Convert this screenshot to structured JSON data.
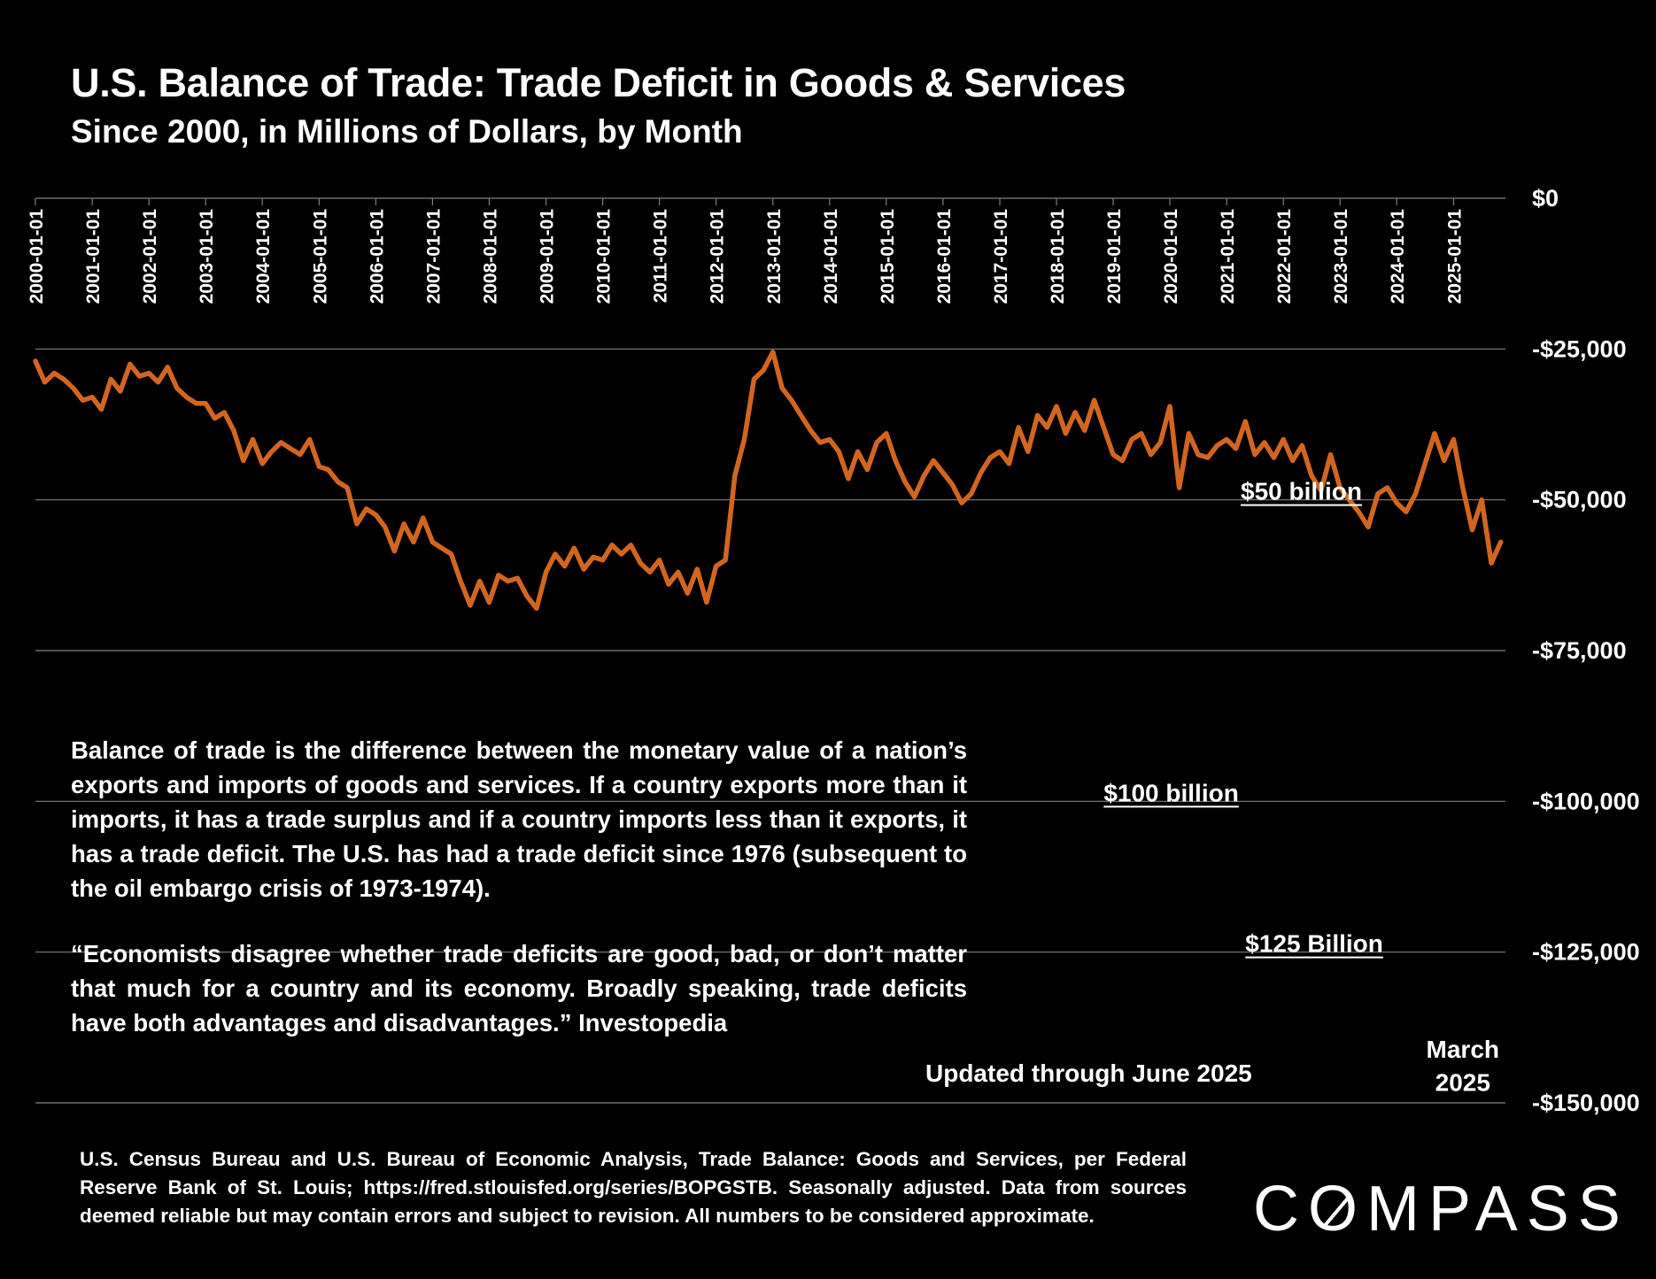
{
  "header": {
    "title": "U.S. Balance of Trade:  Trade Deficit in Goods & Services",
    "subtitle": "Since 2000, in Millions of Dollars, by Month"
  },
  "notes": {
    "paragraph1": "Balance of trade is the difference between the monetary value of a nation’s exports and imports of goods and services. If a country exports more than it imports, it has a trade surplus and if a country imports less than it exports, it has a trade deficit. The U.S. has had a trade deficit since 1976 (subsequent to the oil embargo crisis of 1973-1974).",
    "paragraph2": "“Economists disagree whether trade deficits are good, bad, or don’t matter that much for a country and its economy. Broadly speaking, trade deficits have both advantages and disadvantages.” Investopedia",
    "updated": "Updated through June 2025"
  },
  "footer": {
    "source": "U.S. Census Bureau and U.S. Bureau of Economic Analysis, Trade Balance: Goods and Services, per Federal Reserve Bank of St. Louis; https://fred.stlouisfed.org/series/BOPGSTB. Seasonally adjusted. Data from sources deemed reliable but may contain errors and subject to revision. All numbers to be considered approximate.",
    "logo": "COMPASS"
  },
  "colors": {
    "background": "#000000",
    "line": "#d2661f",
    "grid": "#7f7f7f",
    "text": "#ffffff"
  },
  "chart_data": {
    "type": "line",
    "title": "U.S. Balance of Trade:  Trade Deficit in Goods & Services",
    "subtitle": "Since 2000, in Millions of Dollars, by Month",
    "xlabel": "",
    "ylabel": "",
    "ylim": [
      -150000,
      0
    ],
    "y_ticks": [
      0,
      -25000,
      -50000,
      -75000,
      -100000,
      -125000,
      -150000
    ],
    "y_tick_labels": [
      "$0",
      "-$25,000",
      "-$50,000",
      "-$75,000",
      "-$100,000",
      "-$125,000",
      "-$150,000"
    ],
    "x_tick_labels": [
      "2000-01-01",
      "2001-01-01",
      "2002-01-01",
      "2003-01-01",
      "2004-01-01",
      "2005-01-01",
      "2006-01-01",
      "2007-01-01",
      "2008-01-01",
      "2009-01-01",
      "2010-01-01",
      "2011-01-01",
      "2012-01-01",
      "2013-01-01",
      "2014-01-01",
      "2015-01-01",
      "2016-01-01",
      "2017-01-01",
      "2018-01-01",
      "2019-01-01",
      "2020-01-01",
      "2021-01-01",
      "2022-01-01",
      "2023-01-01",
      "2024-01-01",
      "2025-01-01"
    ],
    "x_axis_position": "top",
    "y_axis_position": "right",
    "grid": true,
    "legend": "none",
    "annotations": [
      {
        "text": "$50 billion",
        "x": "2021-04-01",
        "y": -50000,
        "underline": true
      },
      {
        "text": "$100 billion",
        "x": "2018-11-01",
        "y": -100000,
        "underline": true
      },
      {
        "text": "$125 Billion",
        "x": "2021-05-01",
        "y": -125000,
        "underline": true
      },
      {
        "text": "March",
        "x": "2025-03-01",
        "y": -142500
      },
      {
        "text": "2025",
        "x": "2025-03-01",
        "y": -148000
      }
    ],
    "series": [
      {
        "points": [
          [
            "2000-01-01",
            -27000
          ],
          [
            "2000-03-01",
            -30500
          ],
          [
            "2000-05-01",
            -29000
          ],
          [
            "2000-07-01",
            -30000
          ],
          [
            "2000-09-01",
            -31500
          ],
          [
            "2000-11-01",
            -33500
          ],
          [
            "2001-01-01",
            -33000
          ],
          [
            "2001-03-01",
            -35000
          ],
          [
            "2001-05-01",
            -30000
          ],
          [
            "2001-07-01",
            -32000
          ],
          [
            "2001-09-01",
            -27500
          ],
          [
            "2001-11-01",
            -29500
          ],
          [
            "2002-01-01",
            -29000
          ],
          [
            "2002-03-01",
            -30500
          ],
          [
            "2002-05-01",
            -28000
          ],
          [
            "2002-07-01",
            -31500
          ],
          [
            "2002-09-01",
            -33000
          ],
          [
            "2002-11-01",
            -34000
          ],
          [
            "2003-01-01",
            -34000
          ],
          [
            "2003-03-01",
            -36500
          ],
          [
            "2003-05-01",
            -35500
          ],
          [
            "2003-07-01",
            -38500
          ],
          [
            "2003-09-01",
            -43500
          ],
          [
            "2003-11-01",
            -40000
          ],
          [
            "2004-01-01",
            -44000
          ],
          [
            "2004-03-01",
            -42000
          ],
          [
            "2004-05-01",
            -40500
          ],
          [
            "2004-07-01",
            -41500
          ],
          [
            "2004-09-01",
            -42500
          ],
          [
            "2004-11-01",
            -40000
          ],
          [
            "2005-01-01",
            -44500
          ],
          [
            "2005-03-01",
            -45000
          ],
          [
            "2005-05-01",
            -47000
          ],
          [
            "2005-07-01",
            -48000
          ],
          [
            "2005-09-01",
            -54000
          ],
          [
            "2005-11-01",
            -51500
          ],
          [
            "2006-01-01",
            -52500
          ],
          [
            "2006-03-01",
            -54500
          ],
          [
            "2006-05-01",
            -58500
          ],
          [
            "2006-07-01",
            -54000
          ],
          [
            "2006-09-01",
            -57000
          ],
          [
            "2006-11-01",
            -53000
          ],
          [
            "2007-01-01",
            -57000
          ],
          [
            "2007-03-01",
            -58000
          ],
          [
            "2007-05-01",
            -59000
          ],
          [
            "2007-07-01",
            -63500
          ],
          [
            "2007-09-01",
            -67500
          ],
          [
            "2007-11-01",
            -63500
          ],
          [
            "2008-01-01",
            -67000
          ],
          [
            "2008-03-01",
            -62500
          ],
          [
            "2008-05-01",
            -63500
          ],
          [
            "2008-07-01",
            -63000
          ],
          [
            "2008-09-01",
            -66000
          ],
          [
            "2008-11-01",
            -68000
          ],
          [
            "2009-01-01",
            -62000
          ],
          [
            "2009-03-01",
            -59000
          ],
          [
            "2009-05-01",
            -61000
          ],
          [
            "2009-07-01",
            -58000
          ],
          [
            "2009-09-01",
            -61500
          ],
          [
            "2009-11-01",
            -59500
          ],
          [
            "2010-01-01",
            -60000
          ],
          [
            "2010-03-01",
            -57500
          ],
          [
            "2010-05-01",
            -59000
          ],
          [
            "2010-07-01",
            -57500
          ],
          [
            "2010-09-01",
            -60500
          ],
          [
            "2010-11-01",
            -62000
          ],
          [
            "2011-01-01",
            -60000
          ],
          [
            "2011-03-01",
            -64000
          ],
          [
            "2011-05-01",
            -62000
          ],
          [
            "2011-07-01",
            -65500
          ],
          [
            "2011-09-01",
            -61500
          ],
          [
            "2011-11-01",
            -67000
          ],
          [
            "2012-01-01",
            -61000
          ],
          [
            "2012-03-01",
            -60000
          ],
          [
            "2012-05-01",
            -46000
          ],
          [
            "2012-07-01",
            -40000
          ],
          [
            "2012-09-01",
            -30000
          ],
          [
            "2012-11-01",
            -28500
          ],
          [
            "2013-01-01",
            -25500
          ],
          [
            "2013-03-01",
            -31500
          ],
          [
            "2013-05-01",
            -33500
          ],
          [
            "2013-07-01",
            -36000
          ],
          [
            "2013-09-01",
            -38500
          ],
          [
            "2013-11-01",
            -40500
          ],
          [
            "2014-01-01",
            -40000
          ],
          [
            "2014-03-01",
            -42000
          ],
          [
            "2014-05-01",
            -46500
          ],
          [
            "2014-07-01",
            -42000
          ],
          [
            "2014-09-01",
            -45000
          ],
          [
            "2014-11-01",
            -40500
          ],
          [
            "2015-01-01",
            -39000
          ],
          [
            "2015-03-01",
            -43500
          ],
          [
            "2015-05-01",
            -47000
          ],
          [
            "2015-07-01",
            -49500
          ],
          [
            "2015-09-01",
            -46000
          ],
          [
            "2015-11-01",
            -43500
          ],
          [
            "2016-01-01",
            -45500
          ],
          [
            "2016-03-01",
            -47500
          ],
          [
            "2016-05-01",
            -50500
          ],
          [
            "2016-07-01",
            -49000
          ],
          [
            "2016-09-01",
            -45500
          ],
          [
            "2016-11-01",
            -43000
          ],
          [
            "2017-01-01",
            -42000
          ],
          [
            "2017-03-01",
            -44000
          ],
          [
            "2017-05-01",
            -38000
          ],
          [
            "2017-07-01",
            -42000
          ],
          [
            "2017-09-01",
            -36000
          ],
          [
            "2017-11-01",
            -38000
          ],
          [
            "2018-01-01",
            -34500
          ],
          [
            "2018-03-01",
            -39000
          ],
          [
            "2018-05-01",
            -35500
          ],
          [
            "2018-07-01",
            -38500
          ],
          [
            "2018-09-01",
            -33500
          ],
          [
            "2018-11-01",
            -38000
          ],
          [
            "2019-01-01",
            -42500
          ],
          [
            "2019-03-01",
            -43500
          ],
          [
            "2019-05-01",
            -40000
          ],
          [
            "2019-07-01",
            -39000
          ],
          [
            "2019-09-01",
            -42500
          ],
          [
            "2019-11-01",
            -40500
          ],
          [
            "2020-01-01",
            -34500
          ],
          [
            "2020-03-01",
            -48000
          ],
          [
            "2020-05-01",
            -39000
          ],
          [
            "2020-07-01",
            -42500
          ],
          [
            "2020-09-01",
            -43000
          ],
          [
            "2020-11-01",
            -41000
          ],
          [
            "2021-01-01",
            -40000
          ],
          [
            "2021-03-01",
            -41500
          ],
          [
            "2021-05-01",
            -37000
          ],
          [
            "2021-07-01",
            -42500
          ],
          [
            "2021-09-01",
            -40500
          ],
          [
            "2021-11-01",
            -43000
          ],
          [
            "2022-01-01",
            -40000
          ],
          [
            "2022-03-01",
            -43500
          ],
          [
            "2022-05-01",
            -41000
          ],
          [
            "2022-07-01",
            -46000
          ],
          [
            "2022-09-01",
            -48500
          ],
          [
            "2022-11-01",
            -42500
          ],
          [
            "2023-01-01",
            -48000
          ],
          [
            "2023-03-01",
            -50000
          ],
          [
            "2023-05-01",
            -52000
          ],
          [
            "2023-07-01",
            -54500
          ],
          [
            "2023-09-01",
            -49000
          ],
          [
            "2023-11-01",
            -48000
          ],
          [
            "2024-01-01",
            -50500
          ],
          [
            "2024-03-01",
            -52000
          ],
          [
            "2024-05-01",
            -49000
          ],
          [
            "2024-07-01",
            -44000
          ],
          [
            "2024-09-01",
            -39000
          ],
          [
            "2024-11-01",
            -43500
          ],
          [
            "2025-01-01",
            -40000
          ],
          [
            "2025-03-01",
            -48000
          ],
          [
            "2025-05-01",
            -55000
          ],
          [
            "2025-07-01",
            -50000
          ],
          [
            "2025-09-01",
            -60500
          ],
          [
            "2025-11-01",
            -57000
          ]
        ]
      }
    ]
  }
}
